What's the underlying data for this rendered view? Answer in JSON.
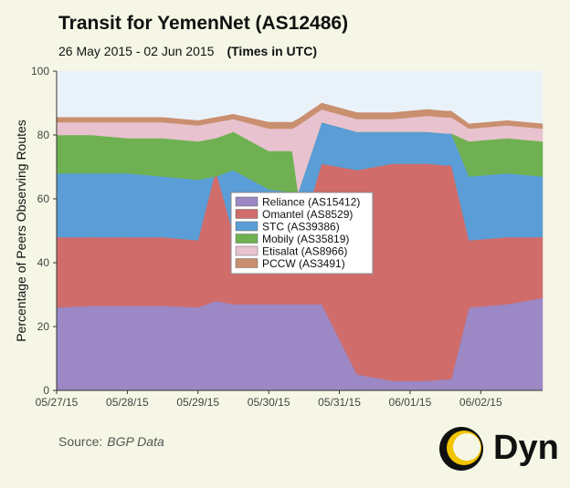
{
  "header": {
    "title": "Transit for YemenNet (AS12486)",
    "date_range": "26 May 2015 - 02 Jun 2015",
    "timezone_note": "(Times in UTC)"
  },
  "footer": {
    "source_label": "Source:",
    "source_value": "BGP Data",
    "logo_text": "Dyn"
  },
  "chart_data": {
    "type": "area",
    "stacked": true,
    "ylabel": "Percentage of Peers Observing Routes",
    "ylim": [
      0,
      100
    ],
    "yticks": [
      0,
      20,
      40,
      60,
      80,
      100
    ],
    "xlim": [
      "2015-05-27 00:00",
      "2015-06-02 21:00"
    ],
    "x_tick_labels": [
      "05/27/15",
      "05/28/15",
      "05/29/15",
      "05/30/15",
      "05/31/15",
      "06/01/15",
      "06/02/15"
    ],
    "grid": false,
    "legend_position": "center",
    "x": [
      "2015-05-27 00:00",
      "2015-05-27 12:00",
      "2015-05-28 00:00",
      "2015-05-28 12:00",
      "2015-05-29 00:00",
      "2015-05-29 06:00",
      "2015-05-29 12:00",
      "2015-05-30 00:00",
      "2015-05-30 08:00",
      "2015-05-30 10:00",
      "2015-05-30 18:00",
      "2015-05-31 06:00",
      "2015-05-31 18:00",
      "2015-06-01 06:00",
      "2015-06-01 12:00",
      "2015-06-01 14:00",
      "2015-06-01 20:00",
      "2015-06-02 09:00",
      "2015-06-02 21:00"
    ],
    "series": [
      {
        "name": "Reliance (AS15412)",
        "color": "#9b88c4",
        "values": [
          26,
          26.5,
          26.5,
          26.5,
          26,
          28,
          27,
          27,
          27,
          27,
          27,
          5,
          3,
          3,
          3.5,
          3.5,
          26,
          27,
          29
        ]
      },
      {
        "name": "Omantel (AS8529)",
        "color": "#d06c6a",
        "values": [
          22,
          21.5,
          21.5,
          21.5,
          21,
          41,
          22,
          22,
          22,
          20,
          44,
          64,
          68,
          68,
          67,
          67,
          21,
          21,
          19
        ]
      },
      {
        "name": "STC (AS39386)",
        "color": "#5b9dd6",
        "values": [
          20,
          20,
          20,
          19,
          19,
          -2,
          20,
          14,
          13,
          15,
          13,
          12,
          10,
          10,
          10,
          10,
          20,
          20,
          19
        ]
      },
      {
        "name": "Mobily (AS35819)",
        "color": "#6fb152",
        "values": [
          12,
          12,
          11,
          12,
          12,
          12,
          12,
          12,
          13,
          0,
          0,
          0,
          0,
          0,
          0,
          0,
          11,
          11,
          11
        ]
      },
      {
        "name": "Etisalat (AS8966)",
        "color": "#e9c2cf",
        "values": [
          4,
          4,
          5,
          5,
          5,
          5,
          4,
          7,
          7,
          21,
          4,
          4,
          4,
          5,
          5,
          5,
          4,
          4,
          4
        ]
      },
      {
        "name": "PCCW (AS3491)",
        "color": "#c98f6f",
        "values": [
          1.5,
          1.5,
          1.5,
          1.5,
          1.5,
          1.5,
          1.5,
          2,
          2,
          2,
          2,
          2,
          2,
          2,
          2,
          2,
          1.5,
          1.5,
          1.5
        ]
      }
    ]
  }
}
